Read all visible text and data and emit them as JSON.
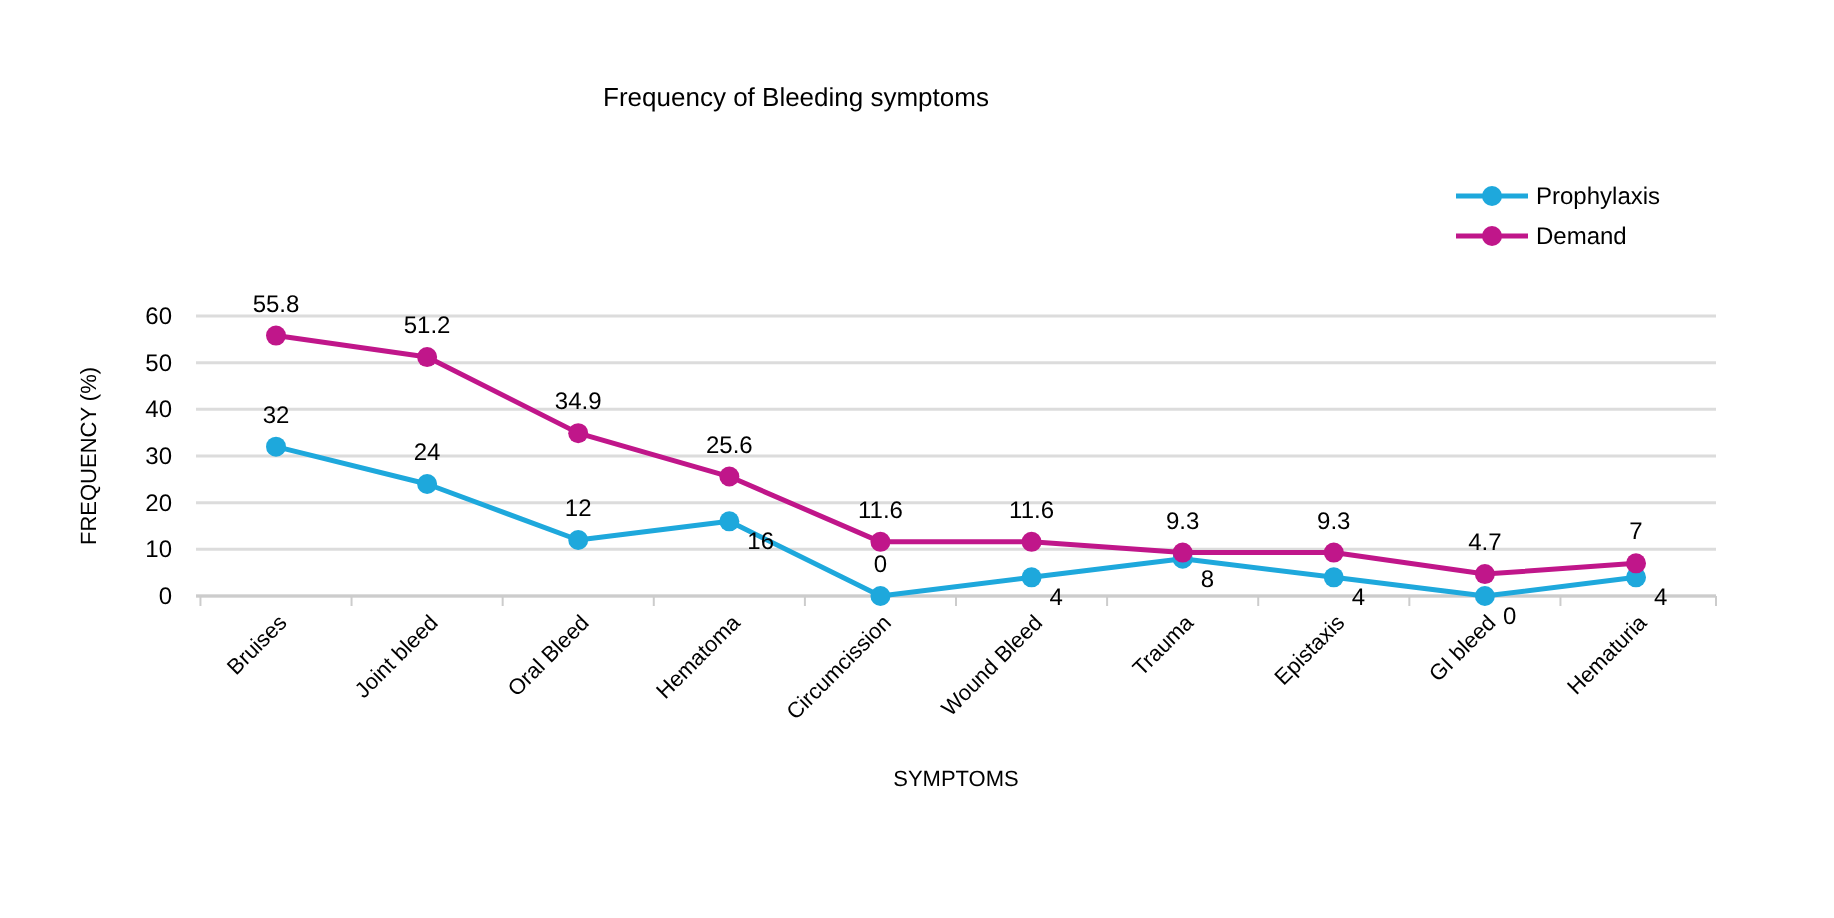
{
  "chart_data": {
    "type": "line",
    "title": "Frequency of Bleeding symptoms",
    "xlabel": "SYMPTOMS",
    "ylabel": "FREQUENCY  (%)",
    "categories": [
      "Bruises",
      "Joint bleed",
      "Oral Bleed",
      "Hematoma",
      "Circumcission",
      "Wound Bleed",
      "Trauma",
      "Epistaxis",
      "GI bleed",
      "Hematuria"
    ],
    "series": [
      {
        "name": "Prophylaxis",
        "color": "#1ea8dc",
        "values": [
          32,
          24,
          12,
          16,
          0,
          4,
          8,
          4,
          0,
          4
        ]
      },
      {
        "name": "Demand",
        "color": "#c0168a",
        "values": [
          55.8,
          51.2,
          34.9,
          25.6,
          11.6,
          11.6,
          9.3,
          9.3,
          4.7,
          7
        ]
      }
    ],
    "ylim": [
      0,
      60
    ],
    "yticks": [
      0,
      10,
      20,
      30,
      40,
      50,
      60
    ],
    "grid": "y",
    "legend": "top right",
    "marker": "circle",
    "line_style": "solid",
    "data_labels": true
  }
}
